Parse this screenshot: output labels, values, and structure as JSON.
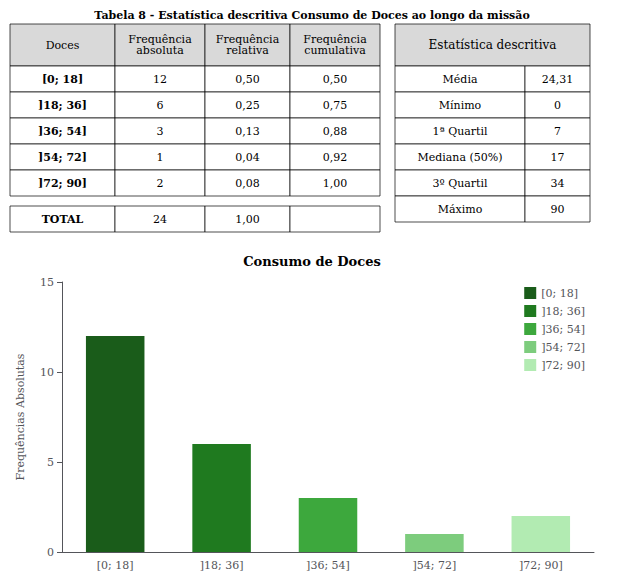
{
  "chart_data": [
    {
      "type": "table",
      "title": "Tabela 8 - Estatística descritiva Consumo de Doces ao longo da missão",
      "columns": [
        "Doces",
        "Frequência\nabsoluta",
        "Frequência\nrelativa",
        "Frequência\ncumulativa"
      ],
      "rows": [
        [
          "[0; 18]",
          "12",
          "0,50",
          "0,50"
        ],
        [
          "]18; 36]",
          "6",
          "0,25",
          "0,75"
        ],
        [
          "]36; 54]",
          "3",
          "0,13",
          "0,88"
        ],
        [
          "]54; 72]",
          "1",
          "0,04",
          "0,92"
        ],
        [
          "]72; 90]",
          "2",
          "0,08",
          "1,00"
        ]
      ],
      "total": [
        "TOTAL",
        "24",
        "1,00",
        null
      ],
      "color": "#d9d9d9"
    },
    {
      "type": "table",
      "columns": [
        "Estatística descritiva"
      ],
      "rows": [
        [
          "Média",
          "24,31"
        ],
        [
          "Mínimo",
          "0"
        ],
        [
          "1ª Quartil",
          "7"
        ],
        [
          "Mediana (50%)",
          "17"
        ],
        [
          "3º Quartil",
          "34"
        ],
        [
          "Máximo",
          "90"
        ]
      ],
      "color": "#d9d9d9"
    },
    {
      "type": "bar",
      "title": "Consumo de Doces",
      "categories": [
        "[0; 18]",
        "]18; 36]",
        "]36; 54]",
        "]54; 72]",
        "]72; 90]"
      ],
      "values": [
        12,
        6,
        3,
        1,
        2
      ],
      "colors": [
        "#1a5c1a",
        "#1f7a1f",
        "#3da83d",
        "#7dcc7d",
        "#b2ebb2"
      ],
      "ylabel": "Frequências Absolutas",
      "ylim": [
        0,
        15
      ],
      "yticks": [
        0,
        5,
        10,
        15
      ],
      "grid": false,
      "legend": "upper right"
    }
  ]
}
